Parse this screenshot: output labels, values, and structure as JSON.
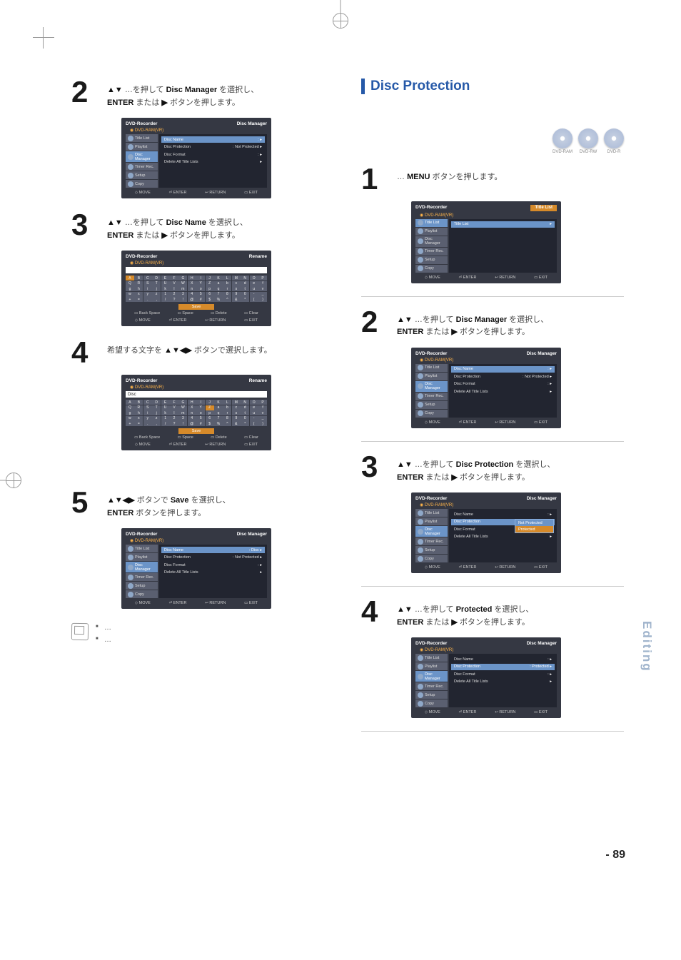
{
  "crop": true,
  "page_number_text": "- 89",
  "sidebar_tab": "Editing",
  "left_column": {
    "steps": [
      {
        "num": "2",
        "text_before": "…を押して",
        "bold1": "▲▼",
        "text_mid1": "、",
        "bold2": "Disc Manager",
        "text_mid2": "を選択し、",
        "bold3": "ENTER",
        "text_mid3": "または",
        "bold4": "▶",
        "text_after": "ボタンを押します。",
        "panel": {
          "title": "DVD-Recorder",
          "right": "Disc Manager",
          "sub": "◉ DVD-RAM(VR)",
          "sidebar": [
            "Title List",
            "Playlist",
            "Disc Manager",
            "Timer Rec.",
            "Setup",
            "Copy"
          ],
          "sel_index": 2,
          "rows": [
            [
              "Disc Name",
              ": ",
              true
            ],
            [
              "Disc Protection",
              ": Not Protected",
              false
            ],
            [
              "Disc Format",
              ": ",
              false
            ],
            [
              "Delete All Title Lists",
              "",
              false
            ]
          ],
          "foot": [
            "◇ MOVE",
            "⏎ ENTER",
            "↩ RETURN",
            "▭ EXIT"
          ]
        }
      },
      {
        "num": "3",
        "text_before": "…を押して",
        "bold1": "▲▼",
        "bold2": "Disc Name",
        "bold3": "ENTER",
        "bold4": "▶",
        "panel": {
          "title": "DVD-Recorder",
          "right": "Rename",
          "sub": "◉ DVD-RAM(VR)",
          "has_keyboard": true,
          "textfield": "",
          "kb_sel_index": 0,
          "actions": [
            "▭ Back Space",
            "▭ Space",
            "▭ Delete",
            "▭ Clear"
          ],
          "foot": [
            "◇ MOVE",
            "⏎ ENTER",
            "↩ RETURN",
            "▭ EXIT"
          ]
        }
      },
      {
        "num": "4",
        "text_line": "希望する文字を",
        "bold1": "▲▼◀▶",
        "text_after": "ボタンで選択します。",
        "panel": {
          "title": "DVD-Recorder",
          "right": "Rename",
          "sub": "◉ DVD-RAM(VR)",
          "has_keyboard": true,
          "textfield": "Disc",
          "kb_sel_index": 25,
          "actions": [
            "▭ Back Space",
            "▭ Space",
            "▭ Delete",
            "▭ Clear"
          ],
          "foot": [
            "◇ MOVE",
            "⏎ ENTER",
            "↩ RETURN",
            "▭ EXIT"
          ]
        }
      },
      {
        "num": "5",
        "bold1": "▲▼◀▶",
        "text_mid": "ボタンで",
        "bold2": "Save",
        "text_mid2": "を選択し、",
        "bold3": "ENTER",
        "text_after": "ボタンを押します。",
        "panel": {
          "title": "DVD-Recorder",
          "right": "Disc Manager",
          "sub": "◉ DVD-RAM(VR)",
          "sidebar": [
            "Title List",
            "Playlist",
            "Disc Manager",
            "Timer Rec.",
            "Setup",
            "Copy"
          ],
          "sel_index": 2,
          "rows": [
            [
              "Disc Name",
              ": Disc",
              true
            ],
            [
              "Disc Protection",
              ": Not Protected",
              false
            ],
            [
              "Disc Format",
              ": ",
              false
            ],
            [
              "Delete All Title Lists",
              "",
              false
            ]
          ],
          "foot": [
            "◇ MOVE",
            "⏎ ENTER",
            "↩ RETURN",
            "▭ EXIT"
          ]
        }
      }
    ],
    "notes": [
      "…",
      "…"
    ]
  },
  "right_column": {
    "section_title": "Disc Protection",
    "disc_labels": [
      "DVD-RAM",
      "DVD-RW",
      "DVD-R"
    ],
    "steps": [
      {
        "num": "1",
        "bold1": "MENU",
        "text": "…ボタンを押します。",
        "panel": {
          "title": "DVD-Recorder",
          "right_label": "Title List",
          "sub": "◉ DVD-RAM(VR)",
          "sidebar": [
            "Title List",
            "Playlist",
            "Disc Manager",
            "Timer Rec.",
            "Setup",
            "Copy"
          ],
          "sel_index": 0,
          "rows": [
            [
              "Title List",
              "",
              true
            ]
          ],
          "foot": [
            "◇ MOVE",
            "⏎ ENTER",
            "↩ RETURN",
            "▭ EXIT"
          ]
        }
      },
      {
        "num": "2",
        "bold1": "▲▼",
        "bold2": "Disc Manager",
        "bold3": "ENTER",
        "bold4": "▶",
        "panel": {
          "title": "DVD-Recorder",
          "right": "Disc Manager",
          "sub": "◉ DVD-RAM(VR)",
          "sidebar": [
            "Title List",
            "Playlist",
            "Disc Manager",
            "Timer Rec.",
            "Setup",
            "Copy"
          ],
          "sel_index": 2,
          "rows": [
            [
              "Disc Name",
              ": ",
              true
            ],
            [
              "Disc Protection",
              ": Not Protected",
              false
            ],
            [
              "Disc Format",
              ": ",
              false
            ],
            [
              "Delete All Title Lists",
              "",
              false
            ]
          ],
          "foot": [
            "◇ MOVE",
            "⏎ ENTER",
            "↩ RETURN",
            "▭ EXIT"
          ]
        }
      },
      {
        "num": "3",
        "bold1": "▲▼",
        "bold2": "Disc Protection",
        "bold3": "ENTER",
        "bold4": "▶",
        "panel": {
          "title": "DVD-Recorder",
          "right": "Disc Manager",
          "sub": "◉ DVD-RAM(VR)",
          "sidebar": [
            "Title List",
            "Playlist",
            "Disc Manager",
            "Timer Rec.",
            "Setup",
            "Copy"
          ],
          "sel_index": 2,
          "rows": [
            [
              "Disc Name",
              ": ",
              false
            ],
            [
              "Disc Protection",
              "",
              true
            ],
            [
              "Disc Format",
              ": ",
              false
            ],
            [
              "Delete All Title Lists",
              "",
              false
            ]
          ],
          "dropdown": {
            "items": [
              "Not Protected",
              "Protected"
            ],
            "sel": 1
          },
          "foot": [
            "◇ MOVE",
            "⏎ ENTER",
            "↩ RETURN",
            "▭ EXIT"
          ]
        }
      },
      {
        "num": "4",
        "bold1": "▲▼",
        "bold2": "Protected",
        "bold3": "ENTER",
        "bold4": "▶",
        "panel": {
          "title": "DVD-Recorder",
          "right": "Disc Manager",
          "sub": "◉ DVD-RAM(VR)",
          "sidebar": [
            "Title List",
            "Playlist",
            "Disc Manager",
            "Timer Rec.",
            "Setup",
            "Copy"
          ],
          "sel_index": 2,
          "rows": [
            [
              "Disc Name",
              ": ",
              false
            ],
            [
              "Disc Protection",
              ": Protected",
              true
            ],
            [
              "Disc Format",
              ": ",
              false
            ],
            [
              "Delete All Title Lists",
              "",
              false
            ]
          ],
          "foot": [
            "◇ MOVE",
            "⏎ ENTER",
            "↩ RETURN",
            "▭ EXIT"
          ]
        }
      }
    ]
  },
  "keyboard_chars": [
    "A",
    "B",
    "C",
    "D",
    "E",
    "F",
    "G",
    "H",
    "I",
    "J",
    "K",
    "L",
    "M",
    "N",
    "O",
    "P",
    "Q",
    "R",
    "S",
    "T",
    "U",
    "V",
    "W",
    "X",
    "Y",
    "Z",
    "a",
    "b",
    "c",
    "d",
    "e",
    "f",
    "g",
    "h",
    "i",
    "j",
    "k",
    "l",
    "m",
    "n",
    "o",
    "p",
    "q",
    "r",
    "s",
    "t",
    "u",
    "v",
    "w",
    "x",
    "y",
    "z",
    "1",
    "2",
    "3",
    "4",
    "5",
    "6",
    "7",
    "8",
    "9",
    "0",
    "-",
    "_",
    "+",
    "=",
    ".",
    ",",
    "/",
    "?",
    "!",
    "@",
    "#",
    "$",
    "%",
    "^",
    "&",
    "*",
    "(",
    ")"
  ],
  "save_label": "Save",
  "colors": {
    "panel_bg": "#353843",
    "panel_main": "#222530",
    "side_item": "#5a5f70",
    "highlight": "#6b94c8",
    "orange": "#d68a2a",
    "section_blue": "#2659a8",
    "sidebar_tab": "#a0b4cc"
  }
}
